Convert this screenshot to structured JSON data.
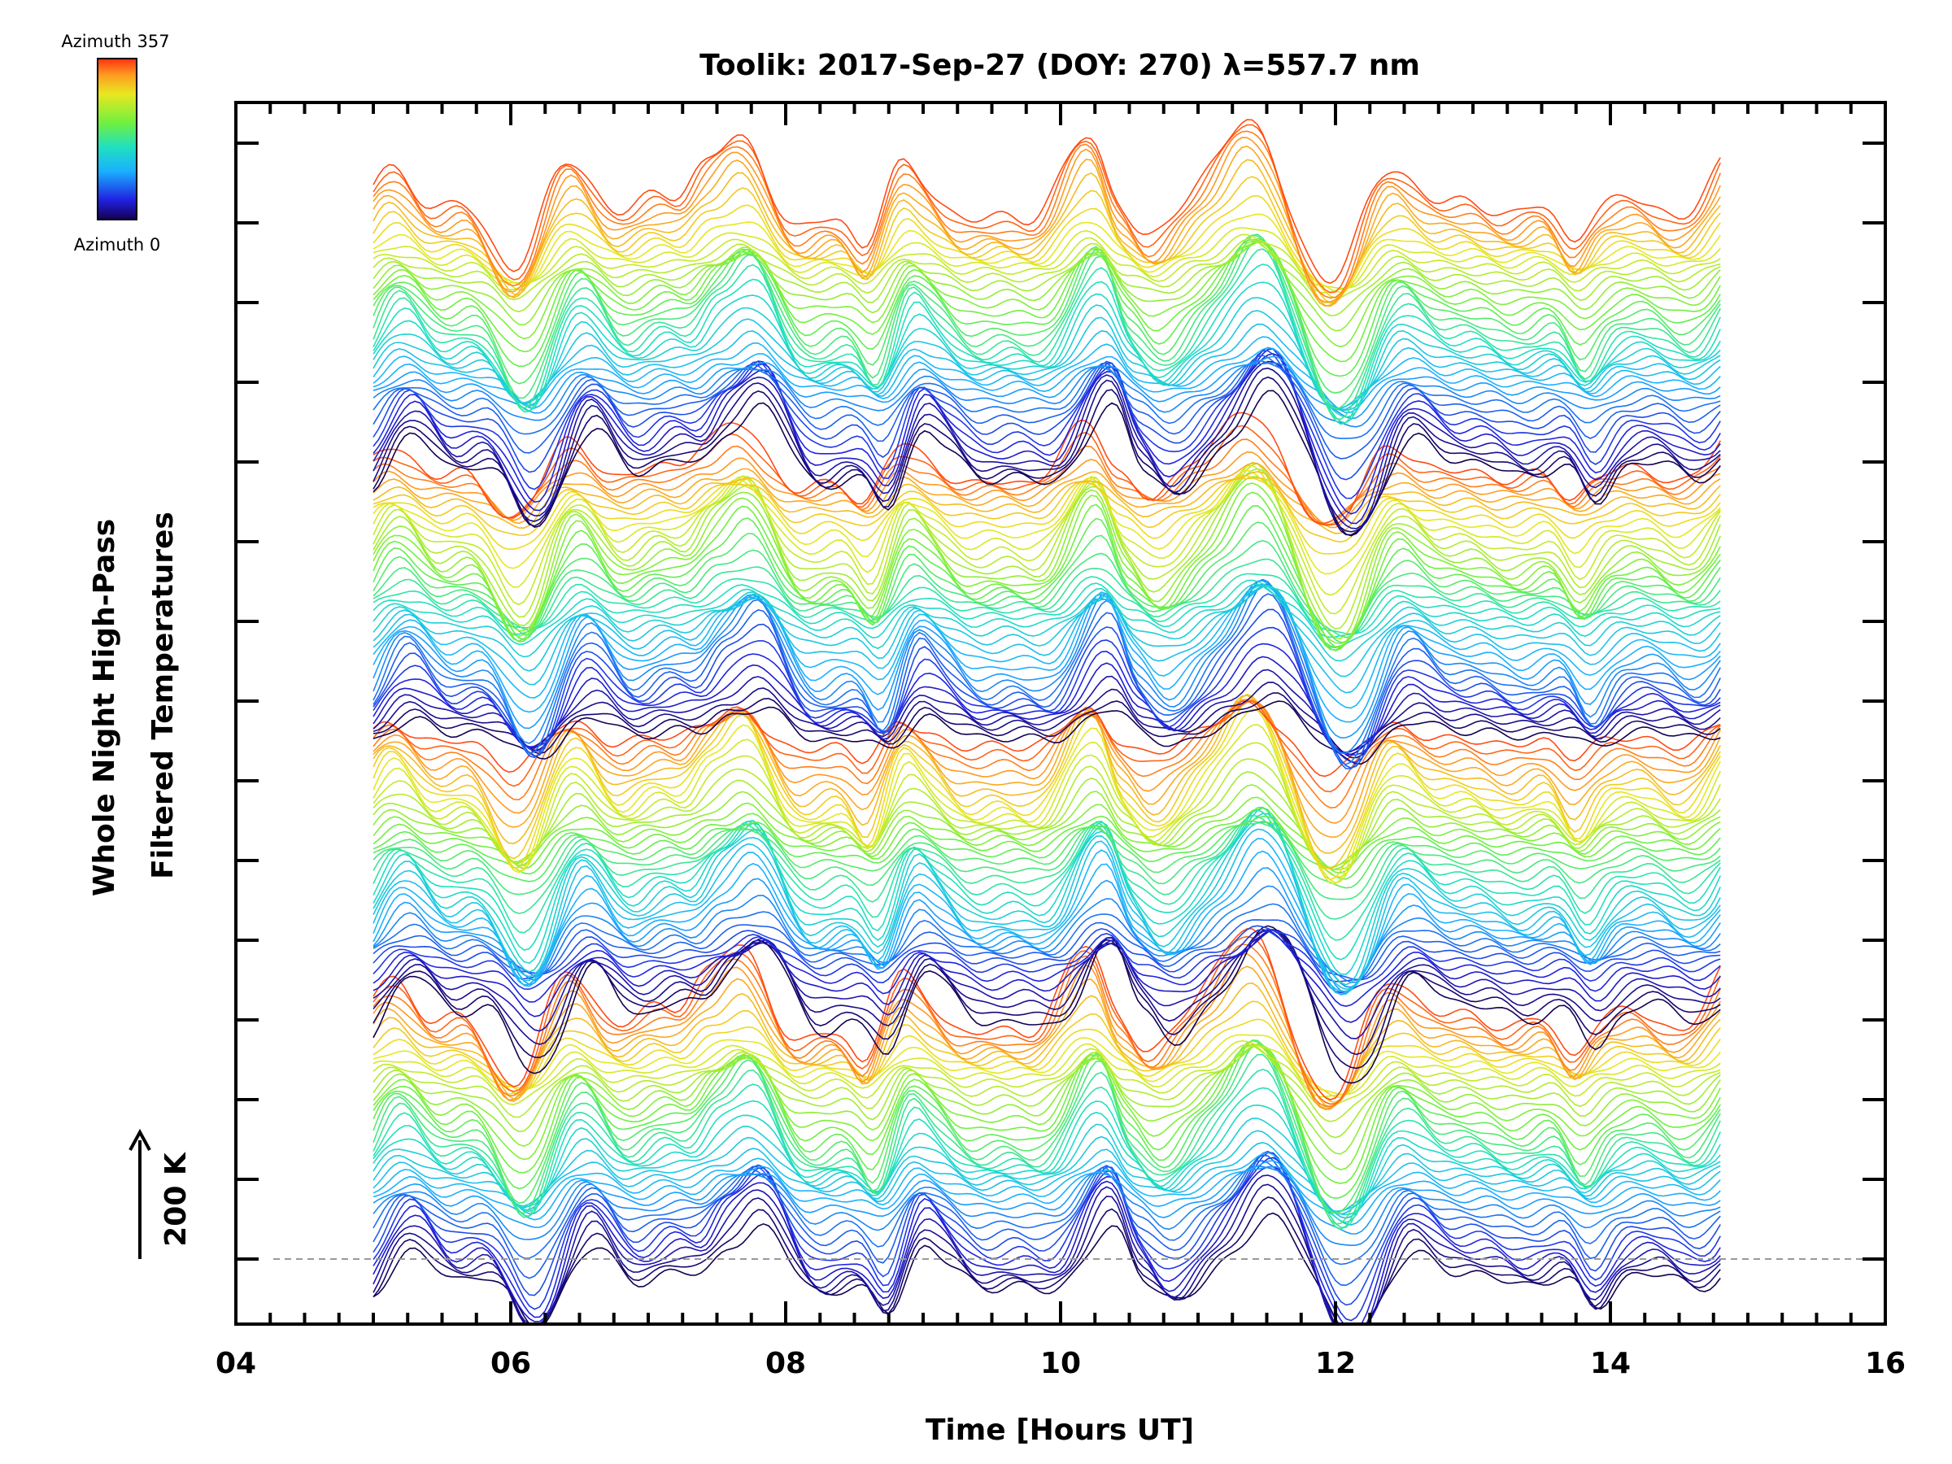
{
  "chart_data": {
    "type": "line",
    "title": "Toolik: 2017-Sep-27 (DOY: 270) λ=557.7 nm",
    "xlabel": "Time [Hours UT]",
    "ylabel_line1": "Whole Night High-Pass",
    "ylabel_line2": "Filtered Temperatures",
    "scale_label": "200 K",
    "xlim": [
      4.0,
      16.0
    ],
    "x_ticks": [
      "04",
      "06",
      "08",
      "10",
      "12",
      "14",
      "16"
    ],
    "x_tick_values": [
      4,
      6,
      8,
      10,
      12,
      14,
      16
    ],
    "time_range": [
      5.0,
      14.8
    ],
    "n_traces": 160,
    "legend": {
      "top_label": "Azimuth 357",
      "bottom_label": "Azimuth 0",
      "azimuth_min": 0,
      "azimuth_max": 357,
      "colormap": "rainbow"
    },
    "baseline": "dashed zero line of the lowest trace"
  }
}
